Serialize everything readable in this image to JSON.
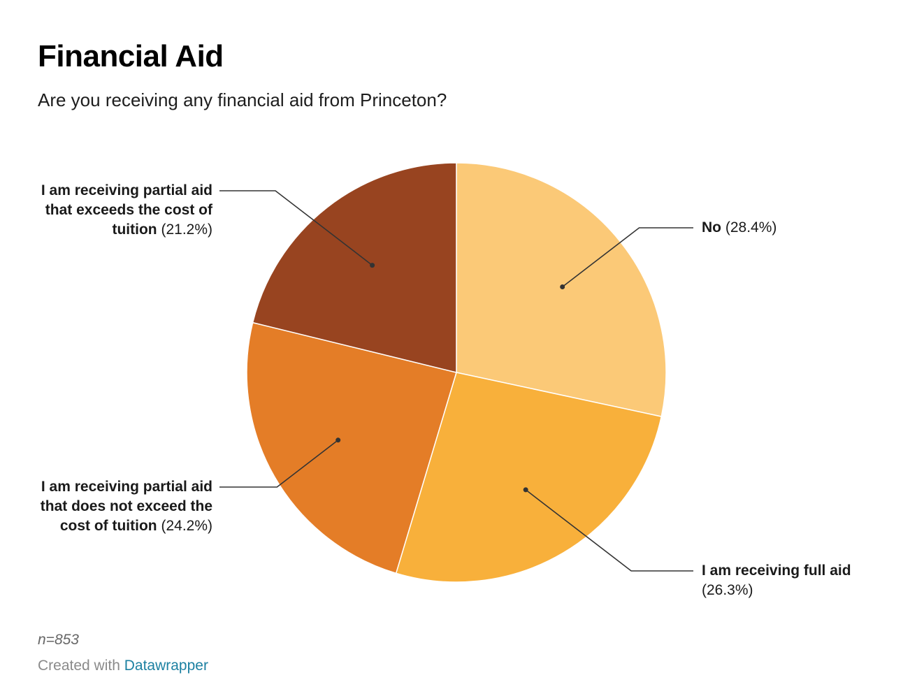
{
  "chart_data": {
    "type": "pie",
    "title": "Financial Aid",
    "subtitle": "Are you receiving any financial aid from Princeton?",
    "slices": [
      {
        "label": "No",
        "value": 28.4,
        "value_label": "(28.4%)",
        "color": "#fbc977",
        "label_side": "right"
      },
      {
        "label": "I am receiving full aid",
        "value": 26.3,
        "value_label": "(26.3%)",
        "color": "#f8b03b",
        "label_side": "right"
      },
      {
        "label": "I am receiving partial aid that does not exceed the cost of tuition",
        "value": 24.2,
        "value_label": "(24.2%)",
        "color": "#e47d27",
        "label_side": "left"
      },
      {
        "label": "I am receiving partial aid that exceeds the cost of tuition",
        "value": 21.2,
        "value_label": "(21.2%)",
        "color": "#984420",
        "label_side": "left"
      }
    ],
    "start_angle_deg": 0,
    "direction": "clockwise",
    "note": "n=853"
  },
  "footer": {
    "credit_prefix": "Created with",
    "credit_link": "Datawrapper"
  },
  "colors": {
    "leader_line": "#333333",
    "slice_border": "#ffffff",
    "link": "#1d81a2"
  }
}
